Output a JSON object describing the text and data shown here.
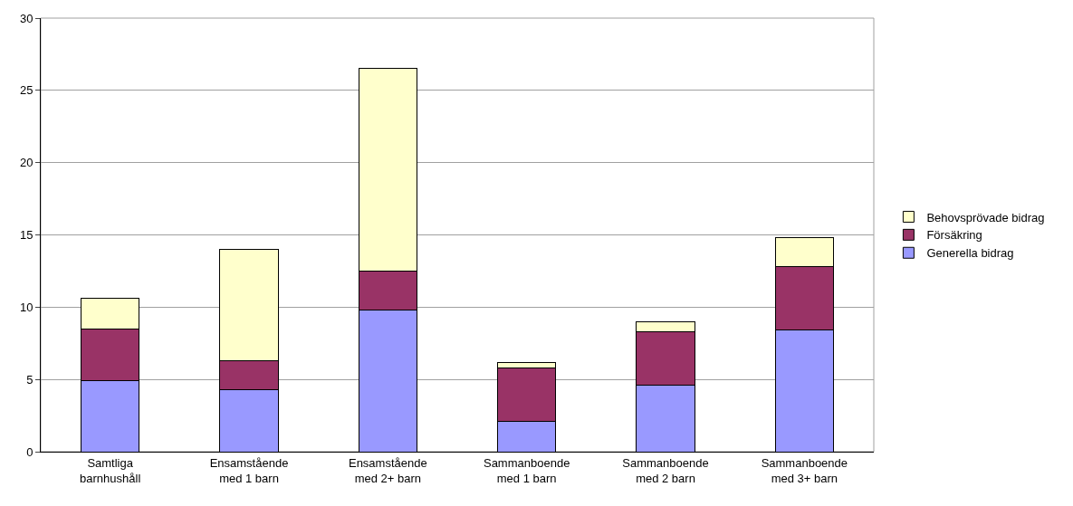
{
  "chart_data": {
    "type": "bar",
    "stacked": true,
    "categories": [
      "Samtliga barnhushåll",
      "Ensamstående med 1 barn",
      "Ensamstående med 2+ barn",
      "Sammanboende med 1 barn",
      "Sammanboende med 2 barn",
      "Sammanboende med 3+ barn"
    ],
    "series": [
      {
        "name": "Generella bidrag",
        "color": "#9999ff",
        "values": [
          4.9,
          4.3,
          9.8,
          2.1,
          4.6,
          8.4
        ]
      },
      {
        "name": "Försäkring",
        "color": "#993366",
        "values": [
          3.6,
          2.0,
          2.7,
          3.7,
          3.7,
          4.4
        ]
      },
      {
        "name": "Behovsprövade bidrag",
        "color": "#ffffcc",
        "values": [
          2.1,
          7.7,
          14.0,
          0.4,
          0.7,
          2.0
        ]
      }
    ],
    "ylim": [
      0,
      30
    ],
    "yticks": [
      0,
      5,
      10,
      15,
      20,
      25,
      30
    ],
    "grid": "y",
    "legend": "right"
  }
}
